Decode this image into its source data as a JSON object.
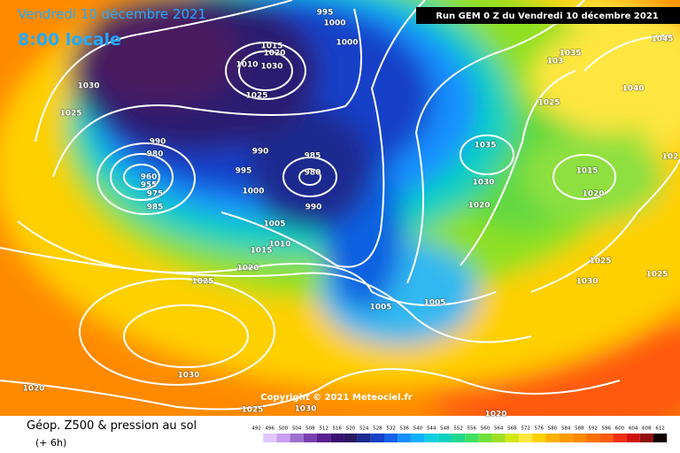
{
  "header": {
    "date": "Vendredi 10 décembre 2021",
    "time": "8:00 locale",
    "run": "Run GEM 0 Z du Vendredi 10 décembre 2021"
  },
  "copyright": "Copyright © 2021 Meteociel.fr",
  "footer": {
    "title": "Géop. Z500 & pression au sol",
    "lead": "(+ 6h)"
  },
  "color_scale": [
    "492",
    "496",
    "500",
    "504",
    "508",
    "512",
    "516",
    "520",
    "524",
    "528",
    "532",
    "536",
    "540",
    "544",
    "548",
    "552",
    "556",
    "560",
    "564",
    "568",
    "572",
    "576",
    "580",
    "584",
    "588",
    "592",
    "596",
    "600",
    "604",
    "608",
    "612"
  ],
  "isobar_labels": [
    "1030",
    "1025",
    "995",
    "1000",
    "1000",
    "1015",
    "1020",
    "1030",
    "1010",
    "1025",
    "990",
    "980",
    "960",
    "955",
    "975",
    "985",
    "990",
    "995",
    "1000",
    "985",
    "980",
    "990",
    "1005",
    "1010",
    "1015",
    "1020",
    "1025",
    "1030",
    "1020",
    "1025",
    "1030",
    "1020",
    "1005",
    "1005",
    "1035",
    "1030",
    "1020",
    "1015",
    "1020",
    "1025",
    "1030",
    "1025",
    "1045",
    "1035",
    "103",
    "1040",
    "1025",
    "102"
  ]
}
